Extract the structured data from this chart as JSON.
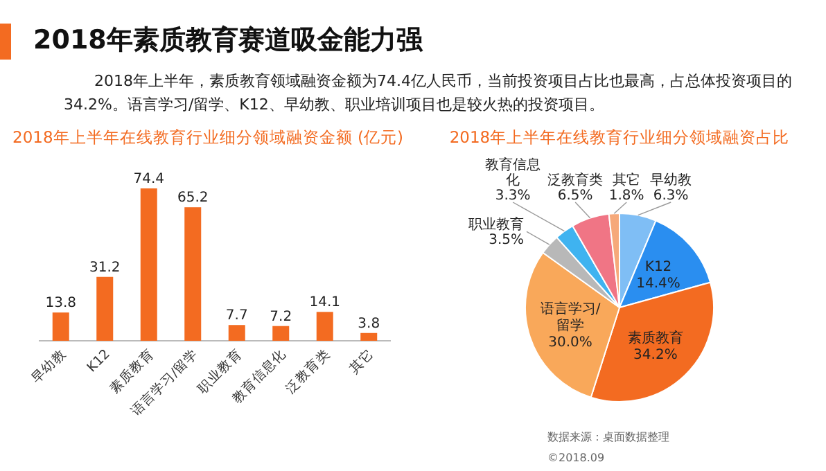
{
  "chart_data": [
    {
      "type": "other",
      "title": "2018年素质教育赛道吸金能力强",
      "annotations": [
        "2018年上半年，素质教育领域融资金额为74.4亿人民币，当前投资项目占比也最高，占总体投资项目的34.2%。语言学习/留学、K12、早幼教、职业培训项目也是较火热的投资项目。"
      ]
    },
    {
      "type": "bar",
      "title": "2018年上半年在线教育行业细分领域融资金额 (亿元)",
      "categories": [
        "早幼教",
        "K12",
        "素质教育",
        "语言学习/留学",
        "职业教育",
        "教育信息化",
        "泛教育类",
        "其它"
      ],
      "values": [
        13.8,
        31.2,
        74.4,
        65.2,
        7.7,
        7.2,
        14.1,
        3.8
      ],
      "color": "#f36b21",
      "data_labels": true
    },
    {
      "type": "pie",
      "title": "2018年上半年在线教育行业细分领域融资占比",
      "categories": [
        "早幼教",
        "K12",
        "素质教育",
        "语言学习/留学",
        "职业教育",
        "教育信息化",
        "泛教育类",
        "其它"
      ],
      "values": [
        6.3,
        14.4,
        34.2,
        30.0,
        3.5,
        3.3,
        6.5,
        1.8
      ],
      "value_labels": [
        "6.3%",
        "14.4%",
        "34.2%",
        "30.0%",
        "3.5%",
        "3.3%",
        "6.5%",
        "1.8%"
      ],
      "colors": [
        "#7fbef5",
        "#2a8ef0",
        "#f36b21",
        "#f9a85a",
        "#b8b8b8",
        "#3fb3f0",
        "#f07585",
        "#f6a97a"
      ],
      "annotations": [
        "数据来源：桌面数据整理",
        "©2018.09"
      ]
    }
  ]
}
